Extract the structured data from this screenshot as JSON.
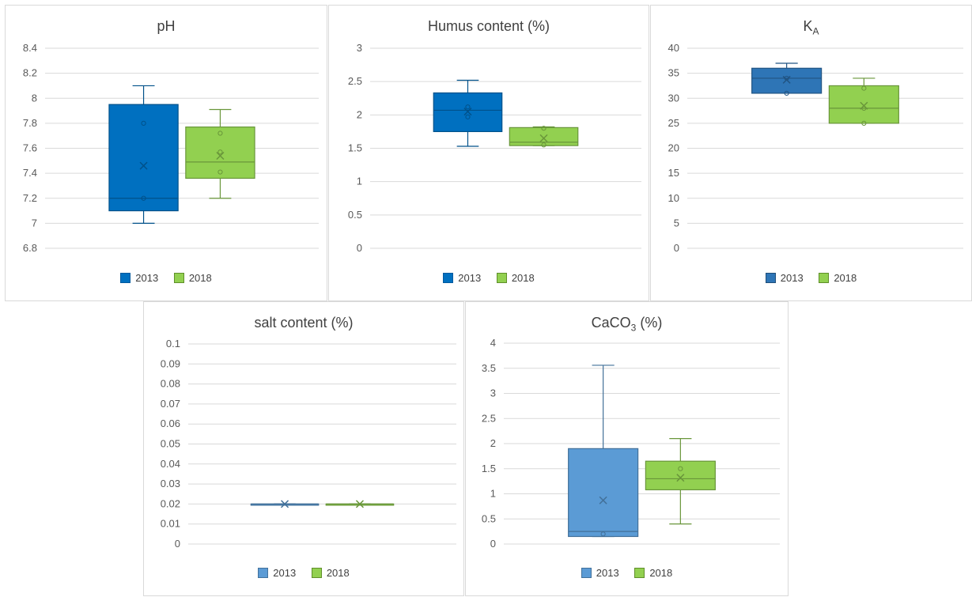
{
  "chart_data": [
    {
      "type": "box",
      "title_main": "pH",
      "title_sub": "",
      "title_suffix": "",
      "ylim": [
        6.8,
        8.4
      ],
      "ytick_labels": [
        "6.8",
        "7",
        "7.2",
        "7.4",
        "7.6",
        "7.8",
        "8",
        "8.2",
        "8.4"
      ],
      "ytick_values": [
        6.8,
        7.0,
        7.2,
        7.4,
        7.6,
        7.8,
        8.0,
        8.2,
        8.4
      ],
      "grid": true,
      "legend": "bottom",
      "series": [
        {
          "name": "2013",
          "color": "#0070c0",
          "min": 7.0,
          "q1": 7.1,
          "median": 7.2,
          "q3": 7.95,
          "max": 8.1,
          "mean": 7.46,
          "points": [
            7.2,
            7.8
          ]
        },
        {
          "name": "2018",
          "color": "#92d050",
          "min": 7.2,
          "q1": 7.36,
          "median": 7.49,
          "q3": 7.77,
          "max": 7.91,
          "mean": 7.54,
          "points": [
            7.41,
            7.57,
            7.72
          ]
        }
      ]
    },
    {
      "type": "box",
      "title_main": "Humus content (%)",
      "title_sub": "",
      "title_suffix": "",
      "ylim": [
        0,
        3
      ],
      "ytick_labels": [
        "0",
        "0.5",
        "1",
        "1.5",
        "2",
        "2.5",
        "3"
      ],
      "ytick_values": [
        0,
        0.5,
        1,
        1.5,
        2,
        2.5,
        3
      ],
      "grid": true,
      "legend": "bottom",
      "series": [
        {
          "name": "2013",
          "color": "#0070c0",
          "min": 1.53,
          "q1": 1.75,
          "median": 2.07,
          "q3": 2.33,
          "max": 2.52,
          "mean": 2.05,
          "points": [
            1.97,
            2.12
          ]
        },
        {
          "name": "2018",
          "color": "#92d050",
          "min": 1.54,
          "q1": 1.54,
          "median": 1.59,
          "q3": 1.81,
          "max": 1.82,
          "mean": 1.65,
          "points": [
            1.55,
            1.8
          ]
        }
      ]
    },
    {
      "type": "box",
      "title_main": "K",
      "title_sub": "A",
      "title_suffix": "",
      "ylim": [
        0,
        40
      ],
      "ytick_labels": [
        "0",
        "5",
        "10",
        "15",
        "20",
        "25",
        "30",
        "35",
        "40"
      ],
      "ytick_values": [
        0,
        5,
        10,
        15,
        20,
        25,
        30,
        35,
        40
      ],
      "grid": true,
      "legend": "bottom",
      "series": [
        {
          "name": "2013",
          "color": "#2e75b6",
          "min": 31,
          "q1": 31,
          "median": 34,
          "q3": 36,
          "max": 37,
          "mean": 33.7,
          "points": [
            31,
            34
          ]
        },
        {
          "name": "2018",
          "color": "#92d050",
          "min": 25,
          "q1": 25,
          "median": 28,
          "q3": 32.5,
          "max": 34,
          "mean": 28.5,
          "points": [
            25,
            28,
            32
          ]
        }
      ]
    },
    {
      "type": "box",
      "title_main": "salt content (%)",
      "title_sub": "",
      "title_suffix": "",
      "ylim": [
        0,
        0.1
      ],
      "ytick_labels": [
        "0",
        "0.01",
        "0.02",
        "0.03",
        "0.04",
        "0.05",
        "0.06",
        "0.07",
        "0.08",
        "0.09",
        "0.1"
      ],
      "ytick_values": [
        0,
        0.01,
        0.02,
        0.03,
        0.04,
        0.05,
        0.06,
        0.07,
        0.08,
        0.09,
        0.1
      ],
      "grid": true,
      "legend": "bottom",
      "series": [
        {
          "name": "2013",
          "color": "#5b9bd5",
          "min": 0.02,
          "q1": 0.02,
          "median": 0.02,
          "q3": 0.02,
          "max": 0.02,
          "mean": 0.02,
          "points": []
        },
        {
          "name": "2018",
          "color": "#92d050",
          "min": 0.02,
          "q1": 0.02,
          "median": 0.02,
          "q3": 0.02,
          "max": 0.02,
          "mean": 0.02,
          "points": []
        }
      ]
    },
    {
      "type": "box",
      "title_main": "CaCO",
      "title_sub": "3",
      "title_suffix": " (%)",
      "ylim": [
        0,
        4
      ],
      "ytick_labels": [
        "0",
        "0.5",
        "1",
        "1.5",
        "2",
        "2.5",
        "3",
        "3.5",
        "4"
      ],
      "ytick_values": [
        0,
        0.5,
        1,
        1.5,
        2,
        2.5,
        3,
        3.5,
        4
      ],
      "grid": true,
      "legend": "bottom",
      "series": [
        {
          "name": "2013",
          "color": "#5b9bd5",
          "min": 0.15,
          "q1": 0.15,
          "median": 0.25,
          "q3": 1.9,
          "max": 3.56,
          "mean": 0.87,
          "points": [
            0.2
          ]
        },
        {
          "name": "2018",
          "color": "#92d050",
          "min": 0.4,
          "q1": 1.08,
          "median": 1.3,
          "q3": 1.65,
          "max": 2.1,
          "mean": 1.32,
          "points": [
            1.5
          ]
        }
      ]
    }
  ]
}
